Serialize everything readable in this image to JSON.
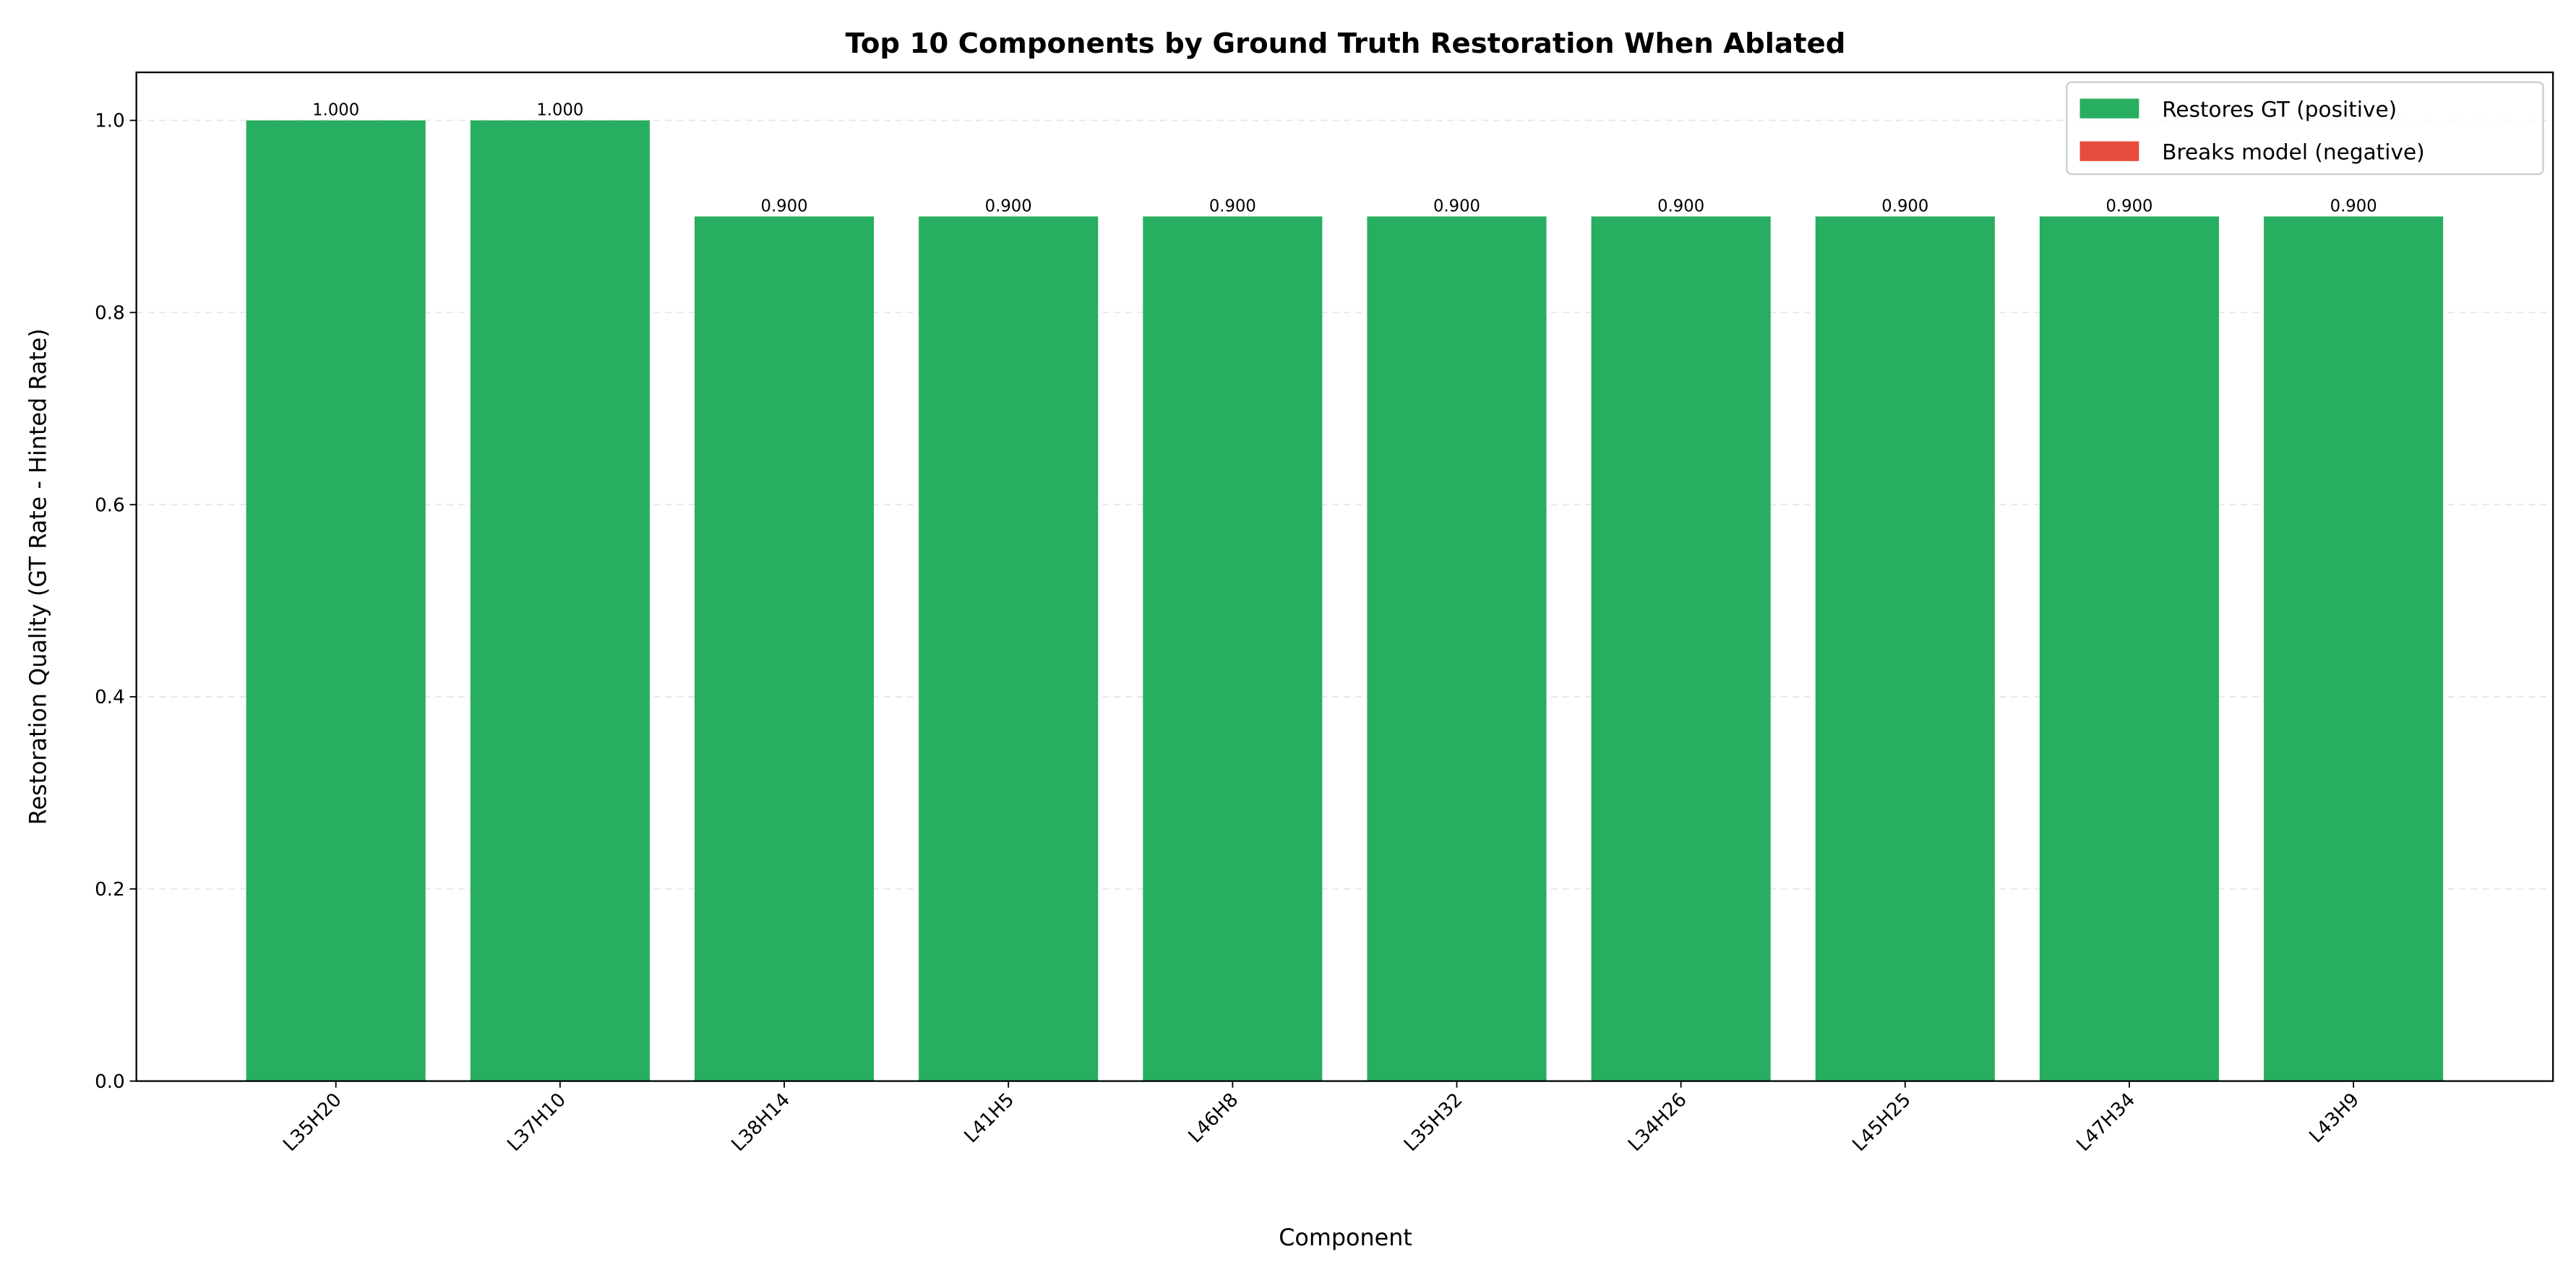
{
  "chart_data": {
    "type": "bar",
    "title": "Top 10 Components by Ground Truth Restoration When Ablated",
    "x_label": "Component",
    "y_label": "Restoration Quality (GT Rate - Hinted Rate)",
    "categories": [
      "L35H20",
      "L37H10",
      "L38H14",
      "L41H5",
      "L46H8",
      "L35H32",
      "L34H26",
      "L45H25",
      "L47H34",
      "L43H9"
    ],
    "values": [
      1.0,
      1.0,
      0.9,
      0.9,
      0.9,
      0.9,
      0.9,
      0.9,
      0.9,
      0.9
    ],
    "value_labels": [
      "1.000",
      "1.000",
      "0.900",
      "0.900",
      "0.900",
      "0.900",
      "0.900",
      "0.900",
      "0.900",
      "0.900"
    ],
    "legend": {
      "position": "upper right",
      "entries": [
        {
          "name": "Restores GT (positive)",
          "color": "#27ae60"
        },
        {
          "name": "Breaks model (negative)",
          "color": "#e74c3c"
        }
      ]
    },
    "ylim": [
      0,
      1.05
    ],
    "yticks": [
      {
        "value": 0,
        "label": "0.0"
      },
      0.2,
      0.4,
      0.6,
      0.8,
      {
        "value": 1,
        "label": "1.0"
      }
    ],
    "grid": true
  }
}
